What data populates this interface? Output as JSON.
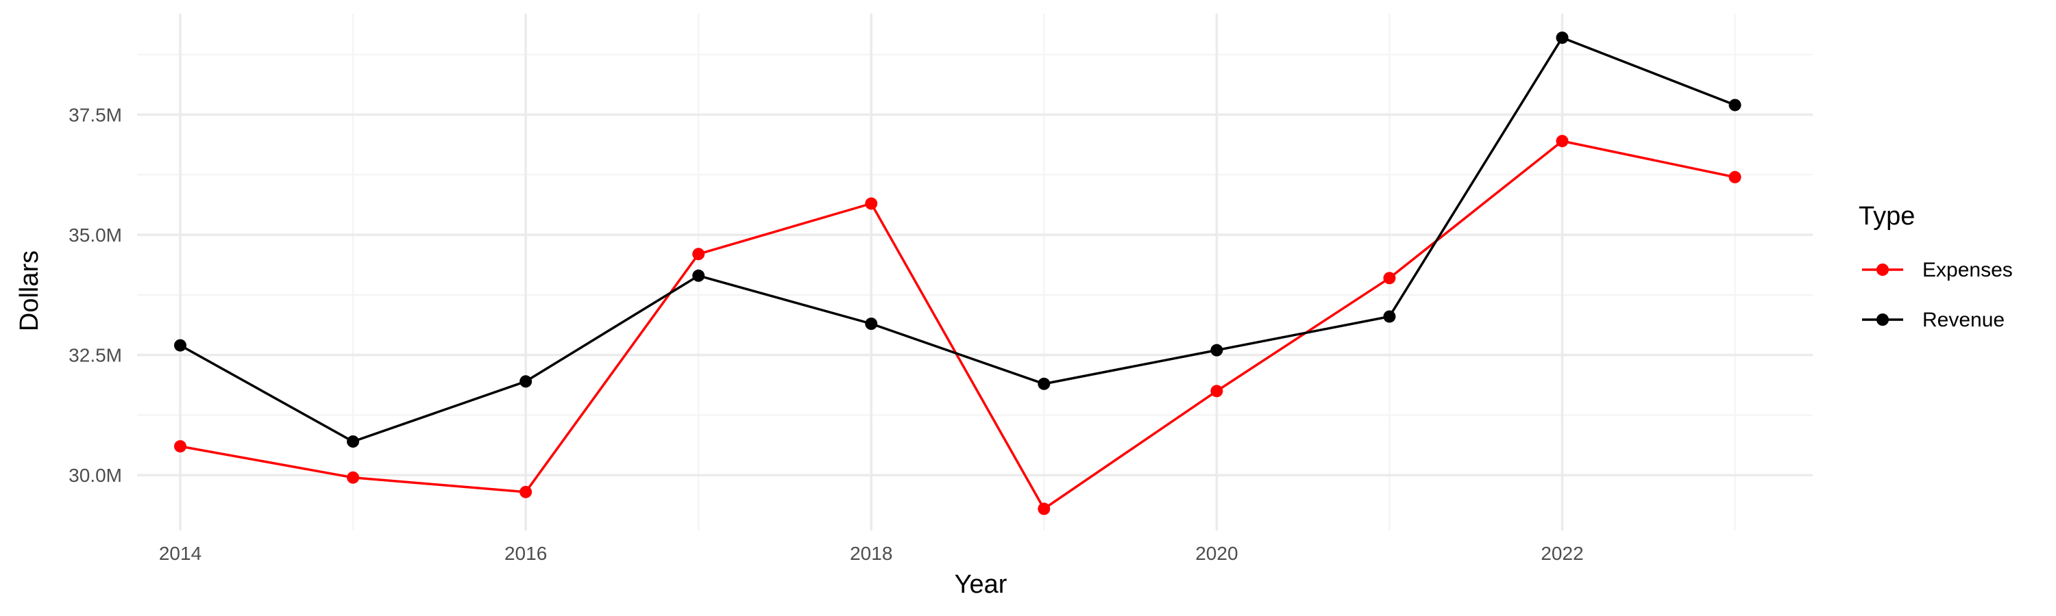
{
  "chart_data": {
    "type": "line",
    "title": "",
    "xlabel": "Year",
    "ylabel": "Dollars",
    "x": [
      2014,
      2015,
      2016,
      2017,
      2018,
      2019,
      2020,
      2021,
      2022,
      2023
    ],
    "xlim": [
      2013.75,
      2023.45
    ],
    "ylim": [
      28.85,
      39.6
    ],
    "x_ticks": [
      2014,
      2016,
      2018,
      2020,
      2022
    ],
    "x_tick_labels": [
      "2014",
      "2016",
      "2018",
      "2020",
      "2022"
    ],
    "y_ticks": [
      30.0,
      32.5,
      35.0,
      37.5
    ],
    "y_tick_labels": [
      "30.0M",
      "32.5M",
      "35.0M",
      "37.5M"
    ],
    "y_unit": "M",
    "grid": true,
    "legend": {
      "title": "Type",
      "position": "right"
    },
    "series": [
      {
        "name": "Expenses",
        "color": "#ff0000",
        "values": [
          30.6,
          29.95,
          29.65,
          34.6,
          35.65,
          29.3,
          31.75,
          34.1,
          36.95,
          36.2
        ]
      },
      {
        "name": "Revenue",
        "color": "#000000",
        "values": [
          32.7,
          30.7,
          31.95,
          34.15,
          33.15,
          31.9,
          32.6,
          33.3,
          39.1,
          37.7
        ]
      }
    ]
  }
}
